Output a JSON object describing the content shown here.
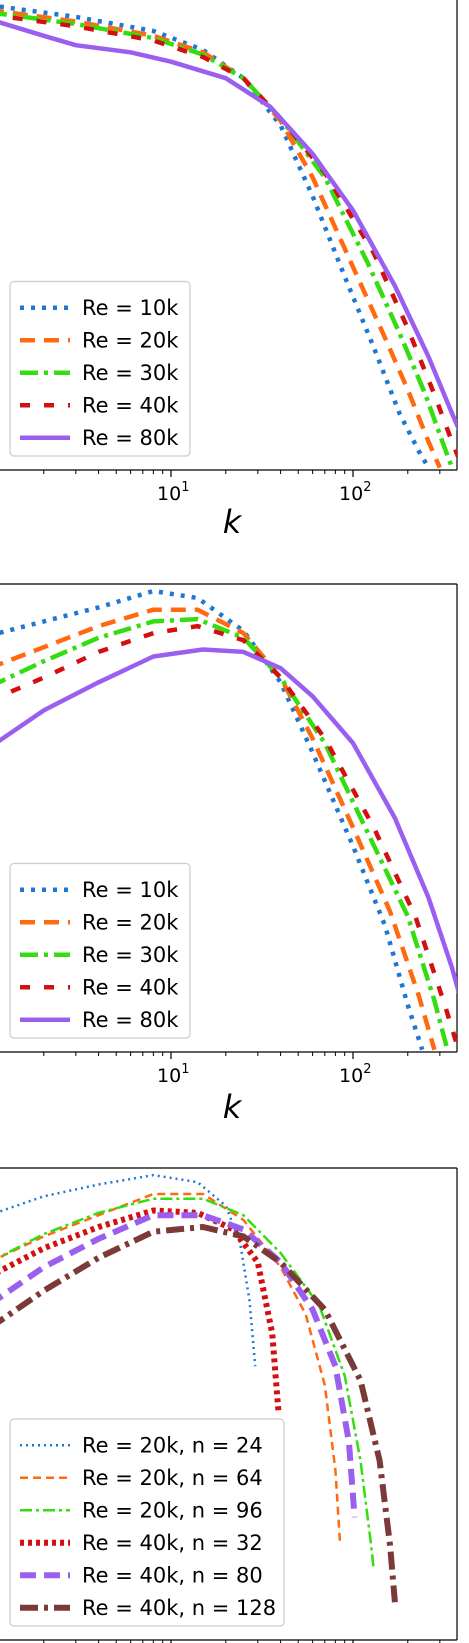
{
  "chart_data": [
    {
      "type": "line",
      "x_scale": "log",
      "xlabel": "k",
      "xlim": [
        1,
        500
      ],
      "ylim": [
        0,
        1
      ],
      "xticks": [
        {
          "base": "10",
          "exp": "1",
          "value": 10
        },
        {
          "base": "10",
          "exp": "2",
          "value": 100
        }
      ],
      "legend_placement": "lower-left",
      "series": [
        {
          "name": "Re = 10k",
          "color": "#1f77d4",
          "dash": "4 7",
          "width": 4.5,
          "x": [
            1,
            3,
            8,
            15,
            25,
            40,
            60,
            90,
            130,
            180,
            230,
            260
          ],
          "y": [
            0.985,
            0.96,
            0.93,
            0.89,
            0.83,
            0.73,
            0.58,
            0.41,
            0.26,
            0.12,
            0.04,
            0.005
          ]
        },
        {
          "name": "Re = 20k",
          "color": "#ff6a10",
          "dash": "15 9",
          "width": 4.5,
          "x": [
            1,
            3,
            8,
            15,
            25,
            40,
            60,
            100,
            150,
            200,
            260,
            300
          ],
          "y": [
            0.975,
            0.95,
            0.92,
            0.885,
            0.83,
            0.74,
            0.62,
            0.43,
            0.28,
            0.17,
            0.06,
            0.005
          ]
        },
        {
          "name": "Re = 30k",
          "color": "#33dd10",
          "dash": "18 6 4 6",
          "width": 4.5,
          "x": [
            1,
            3,
            8,
            15,
            25,
            40,
            70,
            120,
            180,
            250,
            310,
            350
          ],
          "y": [
            0.97,
            0.945,
            0.915,
            0.88,
            0.83,
            0.745,
            0.62,
            0.44,
            0.29,
            0.16,
            0.06,
            0.005
          ]
        },
        {
          "name": "Re = 40k",
          "color": "#d40f0f",
          "dash": "10 14",
          "width": 4.5,
          "x": [
            1,
            3,
            8,
            15,
            25,
            40,
            70,
            130,
            200,
            280,
            350,
            400
          ],
          "y": [
            0.965,
            0.94,
            0.91,
            0.875,
            0.83,
            0.745,
            0.63,
            0.46,
            0.3,
            0.16,
            0.06,
            0.005
          ]
        },
        {
          "name": "Re = 80k",
          "color": "#9b5fef",
          "dash": "",
          "width": 4.5,
          "x": [
            1,
            2,
            3,
            6,
            10,
            20,
            35,
            60,
            100,
            170,
            260,
            350,
            430,
            480
          ],
          "y": [
            0.955,
            0.92,
            0.9,
            0.885,
            0.865,
            0.83,
            0.77,
            0.67,
            0.55,
            0.39,
            0.24,
            0.12,
            0.04,
            0.005
          ]
        }
      ]
    },
    {
      "type": "line",
      "x_scale": "log",
      "xlabel": "k",
      "xlim": [
        1,
        500
      ],
      "ylim": [
        0,
        1
      ],
      "xticks": [
        {
          "base": "10",
          "exp": "1",
          "value": 10
        },
        {
          "base": "10",
          "exp": "2",
          "value": 100
        }
      ],
      "legend_placement": "lower-left",
      "series": [
        {
          "name": "Re = 10k",
          "color": "#1f77d4",
          "dash": "4 7",
          "width": 4.5,
          "x": [
            1,
            2,
            4,
            8,
            14,
            25,
            40,
            60,
            100,
            150,
            200,
            240
          ],
          "y": [
            0.89,
            0.92,
            0.95,
            0.985,
            0.97,
            0.9,
            0.79,
            0.64,
            0.44,
            0.27,
            0.1,
            0.005
          ]
        },
        {
          "name": "Re = 20k",
          "color": "#ff6a10",
          "dash": "15 9",
          "width": 4.5,
          "x": [
            1,
            2,
            4,
            8,
            14,
            25,
            40,
            60,
            100,
            160,
            230,
            280
          ],
          "y": [
            0.82,
            0.865,
            0.91,
            0.945,
            0.945,
            0.895,
            0.8,
            0.67,
            0.48,
            0.3,
            0.12,
            0.005
          ]
        },
        {
          "name": "Re = 30k",
          "color": "#33dd10",
          "dash": "18 6 4 6",
          "width": 4.5,
          "x": [
            1,
            2,
            4,
            8,
            14,
            25,
            40,
            70,
            120,
            200,
            280,
            330
          ],
          "y": [
            0.78,
            0.835,
            0.885,
            0.92,
            0.925,
            0.885,
            0.8,
            0.66,
            0.47,
            0.29,
            0.11,
            0.005
          ]
        },
        {
          "name": "Re = 40k",
          "color": "#d40f0f",
          "dash": "10 14",
          "width": 4.5,
          "x": [
            1,
            2,
            4,
            8,
            14,
            25,
            40,
            70,
            130,
            220,
            320,
            380
          ],
          "y": [
            0.75,
            0.8,
            0.855,
            0.895,
            0.91,
            0.88,
            0.8,
            0.67,
            0.48,
            0.29,
            0.1,
            0.005
          ]
        },
        {
          "name": "Re = 80k",
          "color": "#9b5fef",
          "dash": "",
          "width": 4.5,
          "x": [
            1,
            2,
            4,
            8,
            15,
            25,
            40,
            60,
            100,
            170,
            260,
            350,
            420,
            480
          ],
          "y": [
            0.65,
            0.73,
            0.79,
            0.845,
            0.86,
            0.855,
            0.82,
            0.76,
            0.66,
            0.5,
            0.33,
            0.18,
            0.07,
            0.005
          ]
        }
      ]
    },
    {
      "type": "line",
      "x_scale": "log",
      "xlim": [
        1,
        500
      ],
      "ylim": [
        0,
        1
      ],
      "legend_placement": "lower-left",
      "series": [
        {
          "name": "Re = 20k, n = 24",
          "color": "#1f77d4",
          "dash": "2 4",
          "width": 2.5,
          "x": [
            1,
            2,
            4,
            8,
            14,
            20,
            24,
            27,
            29
          ],
          "y": [
            0.9,
            0.94,
            0.965,
            0.985,
            0.97,
            0.92,
            0.84,
            0.72,
            0.58
          ]
        },
        {
          "name": "Re = 20k, n = 64",
          "color": "#ff6a10",
          "dash": "8 5",
          "width": 2.5,
          "x": [
            1,
            2,
            4,
            8,
            15,
            25,
            40,
            55,
            70,
            80,
            85
          ],
          "y": [
            0.8,
            0.855,
            0.9,
            0.945,
            0.945,
            0.89,
            0.79,
            0.69,
            0.54,
            0.36,
            0.2
          ]
        },
        {
          "name": "Re = 20k, n = 96",
          "color": "#33dd10",
          "dash": "12 4 3 4",
          "width": 2.5,
          "x": [
            1,
            2,
            4,
            8,
            15,
            25,
            40,
            65,
            90,
            110,
            125,
            130
          ],
          "y": [
            0.8,
            0.86,
            0.905,
            0.935,
            0.935,
            0.9,
            0.82,
            0.71,
            0.56,
            0.38,
            0.21,
            0.15
          ]
        },
        {
          "name": "Re = 40k, n = 32",
          "color": "#d40f0f",
          "dash": "4 4",
          "width": 6,
          "x": [
            1,
            2,
            4,
            8,
            14,
            22,
            30,
            36,
            39
          ],
          "y": [
            0.77,
            0.83,
            0.875,
            0.91,
            0.905,
            0.87,
            0.8,
            0.65,
            0.48
          ]
        },
        {
          "name": "Re = 40k, n = 80",
          "color": "#9b5fef",
          "dash": "16 8",
          "width": 6,
          "x": [
            1,
            2,
            4,
            8,
            15,
            25,
            40,
            60,
            80,
            95,
            102
          ],
          "y": [
            0.71,
            0.79,
            0.85,
            0.9,
            0.9,
            0.87,
            0.8,
            0.7,
            0.58,
            0.42,
            0.26
          ]
        },
        {
          "name": "Re = 40k, n = 128",
          "color": "#7b3a38",
          "dash": "18 6 4 6",
          "width": 6,
          "x": [
            1,
            2,
            4,
            8,
            15,
            25,
            40,
            70,
            110,
            140,
            160,
            170
          ],
          "y": [
            0.66,
            0.74,
            0.81,
            0.865,
            0.875,
            0.855,
            0.8,
            0.7,
            0.55,
            0.38,
            0.2,
            0.08
          ]
        }
      ]
    }
  ]
}
